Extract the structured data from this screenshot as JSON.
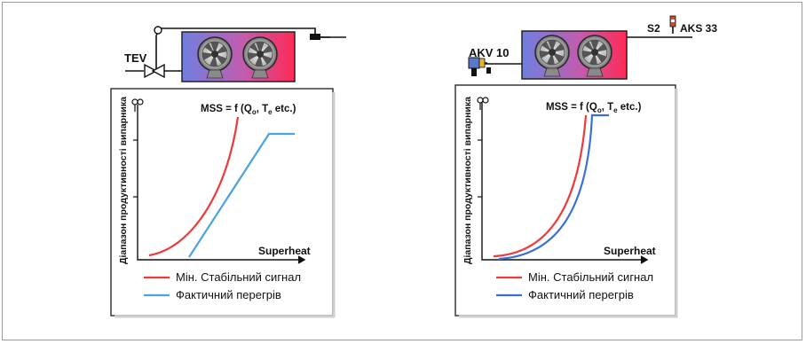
{
  "left": {
    "valve_label": "TEV",
    "formula": {
      "main": "MSS = f (Q",
      "sub1": "o",
      "mid": ", T",
      "sub2": "e",
      "tail": " etc.)"
    },
    "y_label": "Діапазон продуктивності випарника",
    "x_label": "Superheat",
    "legend": [
      {
        "label": "Мін. Стабільний сигнал",
        "color": "#ee3a3a"
      },
      {
        "label": "Фактичний перегрів",
        "color": "#4aa3df"
      }
    ]
  },
  "right": {
    "valve_label": "AKV 10",
    "sensor1_label": "S2",
    "sensor2_label": "AKS 33",
    "formula": {
      "main": "MSS = f (Q",
      "sub1": "o",
      "mid": ", T",
      "sub2": "e",
      "tail": " etc.)"
    },
    "y_label": "Діапазон продуктивності випарника",
    "x_label": "Superheat",
    "legend": [
      {
        "label": "Мін. Стабільний сигнал",
        "color": "#ee3a3a"
      },
      {
        "label": "Фактичний перегрів",
        "color": "#3b6fd8"
      }
    ]
  }
}
